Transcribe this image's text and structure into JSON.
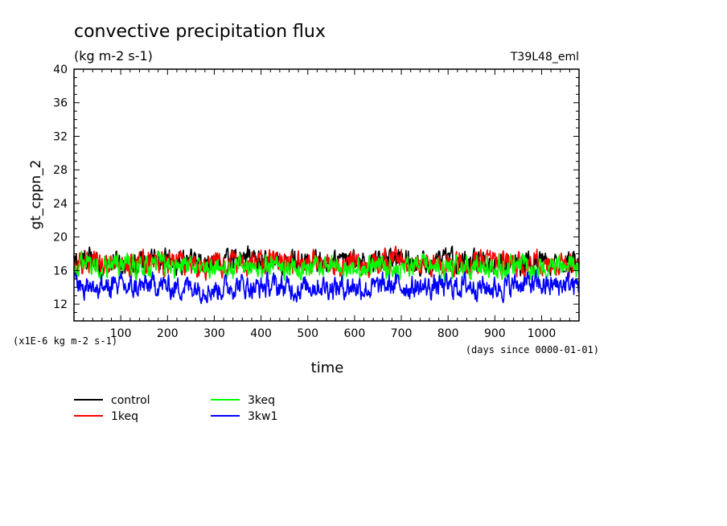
{
  "chart_data": {
    "type": "line",
    "title": "convective precipitation flux",
    "subtitle": "(kg m-2 s-1)",
    "run_label": "T39L48_eml",
    "ylabel": "gt_cppn_2",
    "xlabel": "time",
    "x_units_note": "(days since 0000-01-01)",
    "y_units_note": "(x1E-6 kg m-2 s-1)",
    "xlim": [
      0,
      1080
    ],
    "ylim": [
      10,
      40
    ],
    "x_ticks": [
      100,
      200,
      300,
      400,
      500,
      600,
      700,
      800,
      900,
      1000
    ],
    "y_ticks": [
      12,
      16,
      20,
      24,
      28,
      32,
      36,
      40
    ],
    "grid": false,
    "legend_position": "bottom-left",
    "series": [
      {
        "name": "control",
        "color": "#000000",
        "x": [
          0,
          30,
          60,
          90,
          120,
          150,
          180,
          210,
          240,
          270,
          300,
          330,
          360,
          390,
          420,
          450,
          480,
          510,
          540,
          570,
          600,
          630,
          660,
          690,
          720,
          750,
          780,
          810,
          840,
          870,
          900,
          930,
          960,
          990,
          1020,
          1050,
          1080
        ],
        "y": [
          17.0,
          17.4,
          16.9,
          17.2,
          16.8,
          17.1,
          17.5,
          17.0,
          16.9,
          17.3,
          17.0,
          17.2,
          17.6,
          17.4,
          17.0,
          16.8,
          17.3,
          17.1,
          16.9,
          17.2,
          17.0,
          16.7,
          17.4,
          17.6,
          17.1,
          16.9,
          17.0,
          17.3,
          17.0,
          16.8,
          17.1,
          17.2,
          16.9,
          17.0,
          17.1,
          17.3,
          17.0
        ],
        "amplitude": 1.4
      },
      {
        "name": "1keq",
        "color": "#ff0000",
        "x": [
          0,
          30,
          60,
          90,
          120,
          150,
          180,
          210,
          240,
          270,
          300,
          330,
          360,
          390,
          420,
          450,
          480,
          510,
          540,
          570,
          600,
          630,
          660,
          690,
          720,
          750,
          780,
          810,
          840,
          870,
          900,
          930,
          960,
          990,
          1020,
          1050,
          1080
        ],
        "y": [
          16.8,
          17.0,
          16.6,
          17.1,
          16.7,
          16.9,
          17.2,
          16.8,
          17.0,
          16.6,
          16.9,
          16.7,
          17.0,
          16.8,
          17.3,
          17.1,
          16.9,
          17.0,
          16.6,
          16.8,
          16.9,
          16.5,
          17.1,
          17.3,
          17.0,
          16.8,
          16.9,
          17.0,
          16.7,
          16.9,
          16.8,
          17.0,
          16.6,
          16.9,
          16.8,
          17.0,
          16.7
        ],
        "amplitude": 1.5
      },
      {
        "name": "3keq",
        "color": "#00ff00",
        "x": [
          0,
          30,
          60,
          90,
          120,
          150,
          180,
          210,
          240,
          270,
          300,
          330,
          360,
          390,
          420,
          450,
          480,
          510,
          540,
          570,
          600,
          630,
          660,
          690,
          720,
          750,
          780,
          810,
          840,
          870,
          900,
          930,
          960,
          990,
          1020,
          1050,
          1080
        ],
        "y": [
          16.4,
          16.6,
          16.2,
          16.8,
          16.5,
          16.3,
          16.7,
          16.4,
          16.9,
          16.3,
          16.5,
          16.2,
          16.6,
          16.4,
          16.3,
          16.6,
          16.4,
          16.2,
          16.7,
          16.5,
          16.3,
          16.6,
          16.4,
          16.2,
          16.5,
          16.6,
          16.3,
          16.5,
          16.7,
          16.4,
          16.3,
          16.5,
          16.6,
          16.4,
          16.3,
          16.5,
          16.4
        ],
        "amplitude": 1.4
      },
      {
        "name": "3kw1",
        "color": "#0000ff",
        "x": [
          0,
          30,
          60,
          90,
          120,
          150,
          180,
          210,
          240,
          270,
          300,
          330,
          360,
          390,
          420,
          450,
          480,
          510,
          540,
          570,
          600,
          630,
          660,
          690,
          720,
          750,
          780,
          810,
          840,
          870,
          900,
          930,
          960,
          990,
          1020,
          1050,
          1080
        ],
        "y": [
          14.6,
          14.2,
          14.0,
          14.3,
          13.8,
          14.1,
          14.4,
          13.9,
          14.2,
          14.0,
          13.7,
          14.1,
          14.3,
          13.9,
          14.2,
          14.0,
          13.8,
          14.3,
          14.1,
          14.0,
          14.2,
          13.8,
          14.1,
          14.3,
          14.0,
          13.9,
          14.2,
          14.0,
          14.3,
          14.1,
          13.9,
          14.2,
          14.5,
          14.3,
          14.1,
          14.4,
          14.2
        ],
        "amplitude": 1.5
      }
    ]
  }
}
